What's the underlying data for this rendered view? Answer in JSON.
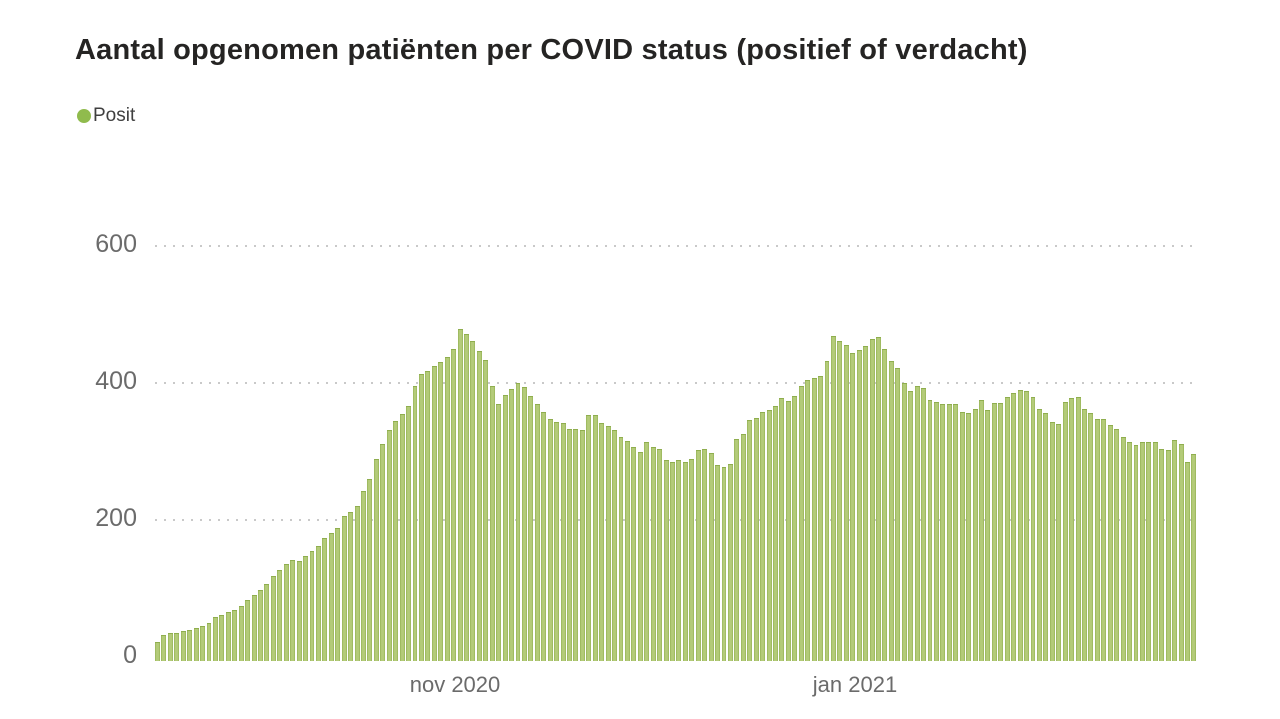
{
  "title": "Aantal opgenomen patiënten per COVID status (positief of verdacht)",
  "legend": {
    "items": [
      {
        "label": "Posit",
        "color": "#90bb4d"
      }
    ]
  },
  "colors": {
    "bar_fill": "#a6c163",
    "bar_edge": "#8fae4e",
    "legend_dot": "#90bb4d",
    "grid_dots": "#c9c9c9",
    "axis_text": "#6b6b6b",
    "title_text": "#252423"
  },
  "chart_data": {
    "type": "bar",
    "title": "Aantal opgenomen patiënten per COVID status (positief of verdacht)",
    "xlabel": "",
    "ylabel": "",
    "ylim": [
      0,
      600
    ],
    "yticks": [
      0,
      200,
      400,
      600
    ],
    "grid": "dotted-horizontal",
    "legend_position": "top-left",
    "x_axis_labels": [
      "nov 2020",
      "jan 2021"
    ],
    "x_description": "daily bars from mid-September 2020 to late February 2021",
    "series": [
      {
        "name": "Posit",
        "color": "#a6c163",
        "values": [
          27,
          38,
          41,
          41,
          43,
          45,
          48,
          50,
          55,
          63,
          67,
          71,
          74,
          80,
          88,
          95,
          103,
          112,
          123,
          131,
          140,
          146,
          144,
          152,
          159,
          166,
          178,
          185,
          193,
          210,
          215,
          224,
          246,
          263,
          292,
          314,
          334,
          347,
          357,
          368,
          398,
          415,
          420,
          426,
          432,
          440,
          451,
          480,
          473,
          462,
          448,
          435,
          397,
          372,
          385,
          393,
          402,
          396,
          383,
          372,
          360,
          350,
          346,
          344,
          336,
          335,
          334,
          356,
          355,
          344,
          340,
          334,
          324,
          318,
          310,
          302,
          316,
          310,
          307,
          290,
          288,
          290,
          288,
          292,
          305,
          306,
          301,
          283,
          281,
          285,
          321,
          328,
          349,
          351,
          360,
          363,
          368,
          380,
          376,
          383,
          397,
          407,
          409,
          412,
          434,
          470,
          462,
          457,
          446,
          450,
          456,
          466,
          469,
          451,
          434,
          424,
          402,
          390,
          397,
          394,
          378,
          375,
          371,
          372,
          371,
          360,
          358,
          365,
          378,
          363,
          373,
          373,
          382,
          387,
          392,
          390,
          382,
          365,
          358,
          346,
          343,
          375,
          380,
          382,
          365,
          358,
          350,
          350,
          341,
          336,
          324,
          317,
          312,
          317,
          317,
          317,
          307,
          305,
          320,
          314,
          288,
          300
        ]
      }
    ]
  }
}
